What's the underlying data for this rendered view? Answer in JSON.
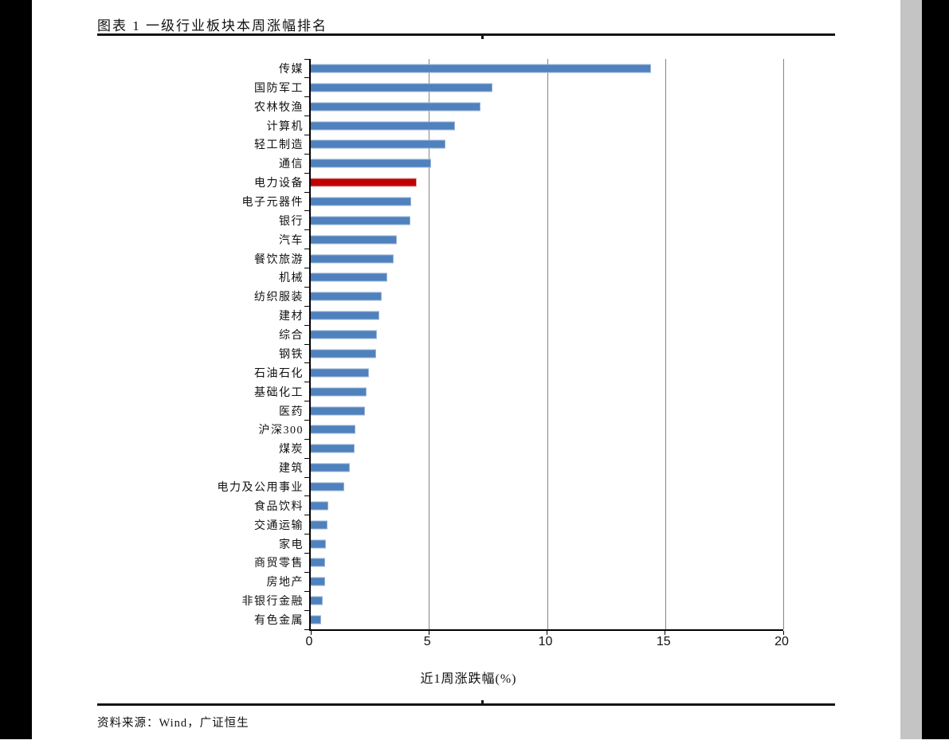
{
  "header": {
    "title": "图表 1 一级行业板块本周涨幅排名"
  },
  "footer": {
    "source": "资料来源：Wind，广证恒生"
  },
  "colors": {
    "bar_blue": "#4f81bd",
    "bar_highlight_red": "#c00000",
    "gridline_gray": "#858585",
    "axis_black": "#000000",
    "side_band_gray": "#c4c4c4",
    "side_band_black": "#000000"
  },
  "chart_data": {
    "type": "bar",
    "orientation": "horizontal",
    "title": "图表 1 一级行业板块本周涨幅排名",
    "xlabel": "近1周涨跌幅(%)",
    "ylabel": "",
    "xlim": [
      0,
      20
    ],
    "xticks": [
      0,
      5,
      10,
      15,
      20
    ],
    "grid": true,
    "legend": null,
    "highlighted_category": "电力设备",
    "bars": [
      {
        "label": "传媒",
        "value": 14.4,
        "highlight": false
      },
      {
        "label": "国防军工",
        "value": 7.7,
        "highlight": false
      },
      {
        "label": "农林牧渔",
        "value": 7.2,
        "highlight": false
      },
      {
        "label": "计算机",
        "value": 6.1,
        "highlight": false
      },
      {
        "label": "轻工制造",
        "value": 5.7,
        "highlight": false
      },
      {
        "label": "通信",
        "value": 5.1,
        "highlight": false
      },
      {
        "label": "电力设备",
        "value": 4.5,
        "highlight": true
      },
      {
        "label": "电子元器件",
        "value": 4.25,
        "highlight": false
      },
      {
        "label": "银行",
        "value": 4.2,
        "highlight": false
      },
      {
        "label": "汽车",
        "value": 3.65,
        "highlight": false
      },
      {
        "label": "餐饮旅游",
        "value": 3.5,
        "highlight": false
      },
      {
        "label": "机械",
        "value": 3.25,
        "highlight": false
      },
      {
        "label": "纺织服装",
        "value": 3.0,
        "highlight": false
      },
      {
        "label": "建材",
        "value": 2.9,
        "highlight": false
      },
      {
        "label": "综合",
        "value": 2.8,
        "highlight": false
      },
      {
        "label": "钢铁",
        "value": 2.75,
        "highlight": false
      },
      {
        "label": "石油石化",
        "value": 2.45,
        "highlight": false
      },
      {
        "label": "基础化工",
        "value": 2.35,
        "highlight": false
      },
      {
        "label": "医药",
        "value": 2.3,
        "highlight": false
      },
      {
        "label": "沪深300",
        "value": 1.9,
        "highlight": false
      },
      {
        "label": "煤炭",
        "value": 1.85,
        "highlight": false
      },
      {
        "label": "建筑",
        "value": 1.65,
        "highlight": false
      },
      {
        "label": "电力及公用事业",
        "value": 1.4,
        "highlight": false
      },
      {
        "label": "食品饮料",
        "value": 0.75,
        "highlight": false
      },
      {
        "label": "交通运输",
        "value": 0.7,
        "highlight": false
      },
      {
        "label": "家电",
        "value": 0.65,
        "highlight": false
      },
      {
        "label": "商贸零售",
        "value": 0.6,
        "highlight": false
      },
      {
        "label": "房地产",
        "value": 0.6,
        "highlight": false
      },
      {
        "label": "非银行金融",
        "value": 0.5,
        "highlight": false
      },
      {
        "label": "有色金属",
        "value": 0.45,
        "highlight": false
      }
    ]
  }
}
